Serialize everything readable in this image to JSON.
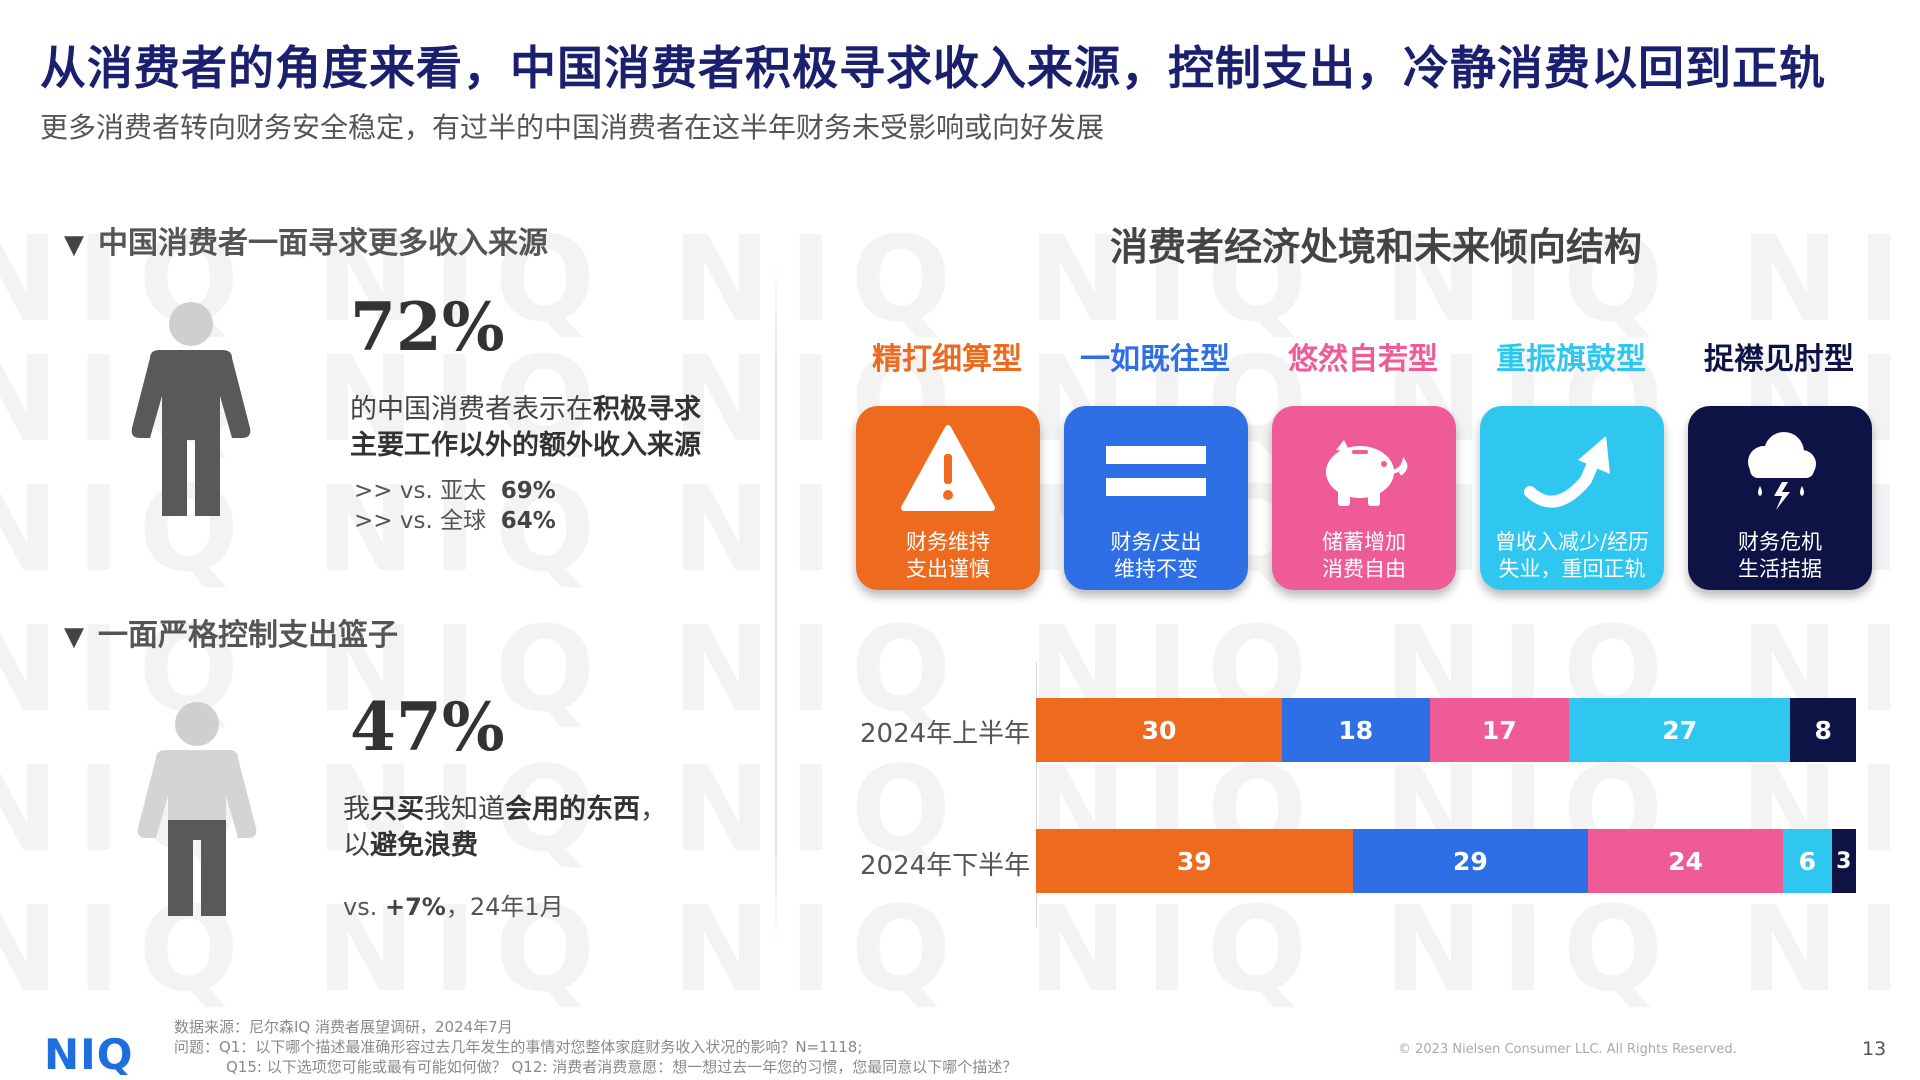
{
  "header": {
    "title": "从消费者的角度来看，中国消费者积极寻求收入来源，控制支出，冷静消费以回到正轨",
    "subtitle": "更多消费者转向财务安全稳定，有过半的中国消费者在这半年财务未受影响或向好发展"
  },
  "watermark": "NIQ",
  "left": {
    "sec1": {
      "heading": "中国消费者一面寻求更多收入来源",
      "pct": "72%",
      "desc_line1_a": "的中国消费者表示在",
      "desc_line1_b": "积极寻求",
      "desc_line2": "主要工作以外的额外收入来源",
      "vs1_label": ">> vs. 亚太",
      "vs1_value": "69%",
      "vs2_label": ">> vs. 全球",
      "vs2_value": "64%"
    },
    "sec2": {
      "heading": "一面严格控制支出篮子",
      "pct": "47%",
      "desc_a": "我",
      "desc_b": "只买",
      "desc_c": "我知道",
      "desc_d": "会用的东西",
      "desc_e": "，",
      "desc_f": "以",
      "desc_g": "避免浪费",
      "vs_prefix": "vs. ",
      "vs_value": "+7%",
      "vs_suffix": "，24年1月"
    }
  },
  "right": {
    "chart_title": "消费者经济处境和未来倾向结构",
    "types": [
      {
        "label": "精打细算型",
        "color": "#ee6a1f",
        "line1": "财务维持",
        "line2": "支出谨慎",
        "icon": "warning-icon"
      },
      {
        "label": "一如既往型",
        "color": "#2e6fe6",
        "line1": "财务/支出",
        "line2": "维持不变",
        "icon": "equals-icon"
      },
      {
        "label": "悠然自若型",
        "color": "#ee5b97",
        "line1": "储蓄增加",
        "line2": "消费自由",
        "icon": "piggy-bank-icon"
      },
      {
        "label": "重振旗鼓型",
        "color": "#2fc7f0",
        "line1": "曾收入减少/经历",
        "line2": "失业，重回正轨",
        "icon": "rebound-arrow-icon"
      },
      {
        "label": "捉襟见肘型",
        "color": "#0e1346",
        "line1": "财务危机",
        "line2": "生活拮据",
        "icon": "storm-cloud-icon"
      }
    ]
  },
  "chart_data": {
    "type": "bar",
    "orientation": "horizontal",
    "stacked": true,
    "normalized_to": 100,
    "categories": [
      "2024年上半年",
      "2024年下半年"
    ],
    "series": [
      {
        "name": "精打细算型",
        "color": "#ee6a1f",
        "values": [
          30,
          39
        ]
      },
      {
        "name": "一如既往型",
        "color": "#2e6fe6",
        "values": [
          18,
          29
        ]
      },
      {
        "name": "悠然自若型",
        "color": "#ee5b97",
        "values": [
          17,
          24
        ]
      },
      {
        "name": "重振旗鼓型",
        "color": "#2fc7f0",
        "values": [
          27,
          6
        ]
      },
      {
        "name": "捉襟见肘型",
        "color": "#0e1346",
        "values": [
          8,
          3
        ]
      }
    ],
    "title": "消费者经济处境和未来倾向结构",
    "data_labels": true,
    "legend": "top (icon tiles)"
  },
  "footer": {
    "logo": "NIQ",
    "source": "数据来源：尼尔森IQ 消费者展望调研，2024年7月",
    "q1": "问题：Q1：以下哪个描述最准确形容过去几年发生的事情对您整体家庭财务收入状况的影响？N=1118;",
    "q15": "Q15: 以下选项您可能或最有可能如何做？ Q12: 消费者消费意愿：想一想过去一年您的习惯，您最同意以下哪个描述？",
    "copyright": "© 2023 Nielsen Consumer LLC. All Rights Reserved.",
    "page_number": "13"
  }
}
